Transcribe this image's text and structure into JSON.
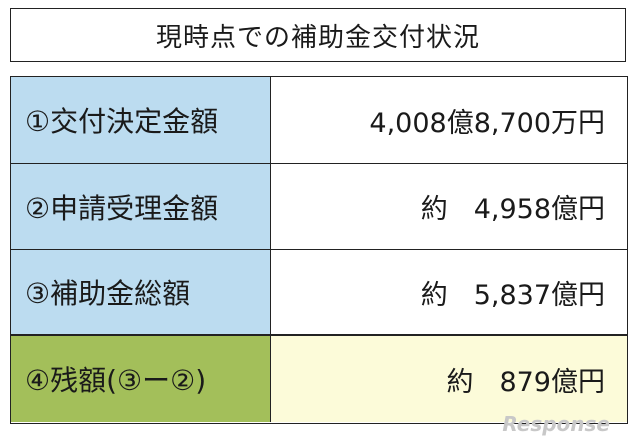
{
  "title": "現時点での補助金交付状況",
  "table": {
    "rows": [
      {
        "label": "①交付決定金額",
        "amount": "4,008億8,700万円"
      },
      {
        "label": "②申請受理金額",
        "prefix": "約",
        "amount": "4,958億円"
      },
      {
        "label": "③補助金総額",
        "prefix": "約",
        "amount": "5,837億円"
      },
      {
        "label": "④残額(③ー②)",
        "prefix": "約",
        "amount": "879億円"
      }
    ]
  },
  "watermark": "Response"
}
